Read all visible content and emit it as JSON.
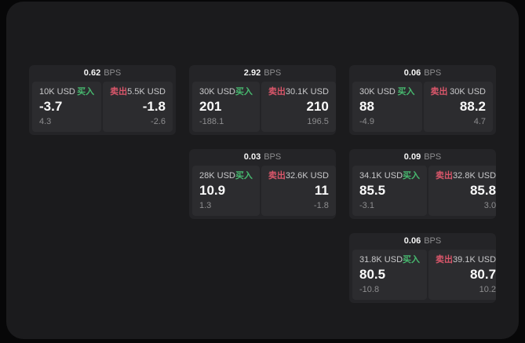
{
  "labels": {
    "bps_unit": "BPS",
    "buy": "买入",
    "sell": "卖出"
  },
  "colors": {
    "buy_green": "#47b96f",
    "sell_red": "#d9566a",
    "window_bg": "#1b1b1d",
    "card_bg": "#242427",
    "panel_bg": "#2c2c2f"
  },
  "cards": [
    {
      "bps": "0.62",
      "buy": {
        "amount": "10K USD",
        "price": "-3.7",
        "delta": "4.3"
      },
      "sell": {
        "amount": "5.5K USD",
        "price": "-1.8",
        "delta": "-2.6"
      }
    },
    {
      "bps": "2.92",
      "buy": {
        "amount": "30K USD",
        "price": "201",
        "delta": "-188.1"
      },
      "sell": {
        "amount": "30.1K USD",
        "price": "210",
        "delta": "196.5"
      }
    },
    {
      "bps": "0.06",
      "buy": {
        "amount": "30K USD",
        "price": "88",
        "delta": "-4.9"
      },
      "sell": {
        "amount": "30K USD",
        "price": "88.2",
        "delta": "4.7"
      }
    },
    {
      "bps": "0.03",
      "buy": {
        "amount": "28K USD",
        "price": "10.9",
        "delta": "1.3"
      },
      "sell": {
        "amount": "32.6K USD",
        "price": "11",
        "delta": "-1.8"
      }
    },
    {
      "bps": "0.09",
      "buy": {
        "amount": "34.1K USD",
        "price": "85.5",
        "delta": "-3.1"
      },
      "sell": {
        "amount": "32.8K USD",
        "price": "85.8",
        "delta": "3.0"
      }
    },
    {
      "bps": "0.06",
      "buy": {
        "amount": "31.8K USD",
        "price": "80.5",
        "delta": "-10.8"
      },
      "sell": {
        "amount": "39.1K USD",
        "price": "80.7",
        "delta": "10.2"
      }
    }
  ]
}
